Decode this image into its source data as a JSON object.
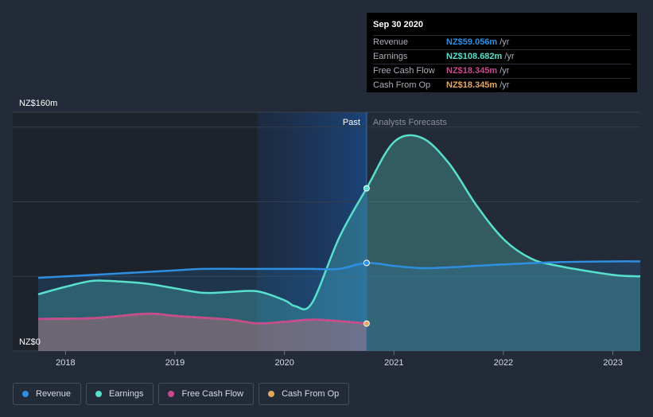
{
  "chart_data": {
    "type": "area",
    "y_axis": {
      "max_label": "NZ$160m",
      "min_label": "NZ$0",
      "ylim": [
        0,
        160
      ]
    },
    "x_ticks": [
      "2018",
      "2019",
      "2020",
      "2021",
      "2022",
      "2023"
    ],
    "xlim": [
      2017.75,
      2023.25
    ],
    "past_label": "Past",
    "forecast_label": "Analysts Forecasts",
    "past_end": 2020.75,
    "highlight_start": 2019.75,
    "grid": true,
    "series": [
      {
        "name": "Revenue",
        "color": "#2e8fe0",
        "x": [
          2017.75,
          2018.0,
          2018.5,
          2019.0,
          2019.25,
          2019.75,
          2020.0,
          2020.25,
          2020.5,
          2020.75,
          2021.0,
          2021.25,
          2021.5,
          2022.0,
          2022.5,
          2023.0,
          2023.25
        ],
        "y": [
          49,
          50,
          52,
          54,
          55,
          55,
          55,
          55,
          55,
          59,
          57,
          55.5,
          56,
          58,
          59.5,
          60,
          60
        ]
      },
      {
        "name": "Earnings",
        "color": "#58e0cc",
        "x": [
          2017.75,
          2018.0,
          2018.25,
          2018.5,
          2018.75,
          2019.0,
          2019.25,
          2019.5,
          2019.75,
          2020.0,
          2020.1,
          2020.25,
          2020.5,
          2020.75,
          2021.0,
          2021.25,
          2021.5,
          2021.75,
          2022.0,
          2022.25,
          2022.5,
          2023.0,
          2023.25
        ],
        "y": [
          38,
          43,
          47,
          46.5,
          45,
          42,
          39,
          39.5,
          40,
          34,
          30,
          32,
          76,
          109,
          140,
          143,
          126,
          98,
          75,
          62,
          57,
          51,
          50
        ]
      },
      {
        "name": "Free Cash Flow",
        "color": "#c9488e",
        "x": [
          2017.75,
          2018.25,
          2018.75,
          2019.0,
          2019.5,
          2019.75,
          2020.0,
          2020.25,
          2020.5,
          2020.75
        ],
        "y": [
          21.5,
          22,
          25,
          23.5,
          21,
          18.5,
          19.5,
          21,
          20,
          18.345
        ]
      },
      {
        "name": "Cash From Op",
        "color": "#e5a860",
        "x": [
          2017.75,
          2018.25,
          2018.75,
          2019.0,
          2019.5,
          2019.75,
          2020.0,
          2020.25,
          2020.5,
          2020.75
        ],
        "y": [
          21.5,
          22,
          25,
          23.5,
          21,
          18.5,
          19.5,
          21,
          20,
          18.345
        ]
      }
    ]
  },
  "tooltip": {
    "date": "Sep 30 2020",
    "rows": [
      {
        "label": "Revenue",
        "value": "NZ$59.056m",
        "unit": "/yr",
        "color": "#2e8fe0"
      },
      {
        "label": "Earnings",
        "value": "NZ$108.682m",
        "unit": "/yr",
        "color": "#58e0cc"
      },
      {
        "label": "Free Cash Flow",
        "value": "NZ$18.345m",
        "unit": "/yr",
        "color": "#c9488e"
      },
      {
        "label": "Cash From Op",
        "value": "NZ$18.345m",
        "unit": "/yr",
        "color": "#e5a860"
      }
    ]
  },
  "legend": [
    {
      "label": "Revenue",
      "color": "#2e8fe0"
    },
    {
      "label": "Earnings",
      "color": "#58e0cc"
    },
    {
      "label": "Free Cash Flow",
      "color": "#c9488e"
    },
    {
      "label": "Cash From Op",
      "color": "#e5a860"
    }
  ]
}
